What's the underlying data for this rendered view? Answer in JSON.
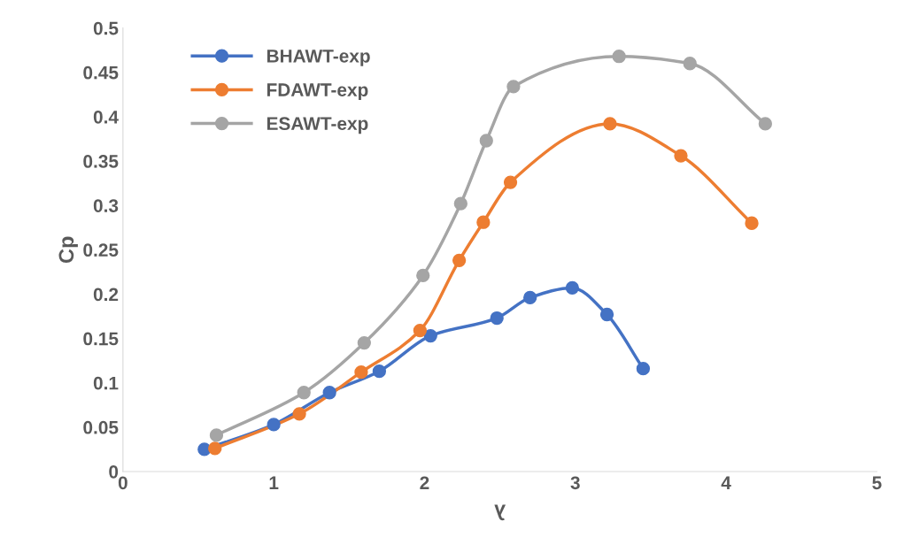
{
  "chart_data": {
    "type": "line",
    "xlabel": "λ",
    "ylabel": "Cp",
    "xlim": [
      0,
      5
    ],
    "xticks": [
      0,
      1,
      2,
      3,
      4,
      5
    ],
    "ylim": [
      0,
      0.5
    ],
    "yticks": [
      0,
      0.05,
      0.1,
      0.15,
      0.2,
      0.25,
      0.3,
      0.35,
      0.4,
      0.45,
      0.5
    ],
    "grid": false,
    "legend": "top left",
    "marker": "circle",
    "line_style": "solid",
    "series": [
      {
        "name": "BHAWT-exp",
        "color": "#4472c4",
        "x": [
          0.54,
          1.0,
          1.37,
          1.7,
          2.04,
          2.48,
          2.7,
          2.98,
          3.21,
          3.45
        ],
        "values": [
          0.025,
          0.053,
          0.089,
          0.113,
          0.153,
          0.173,
          0.196,
          0.207,
          0.177,
          0.116
        ]
      },
      {
        "name": "FDAWT-exp",
        "color": "#ed7d31",
        "x": [
          0.61,
          1.17,
          1.58,
          1.97,
          2.23,
          2.39,
          2.57,
          3.23,
          3.7,
          4.17
        ],
        "values": [
          0.026,
          0.065,
          0.112,
          0.159,
          0.238,
          0.281,
          0.326,
          0.392,
          0.356,
          0.28
        ]
      },
      {
        "name": "ESAWT-exp",
        "color": "#a5a5a5",
        "x": [
          0.62,
          1.2,
          1.6,
          1.99,
          2.24,
          2.41,
          2.59,
          3.29,
          3.76,
          4.26
        ],
        "values": [
          0.041,
          0.089,
          0.145,
          0.221,
          0.302,
          0.373,
          0.434,
          0.468,
          0.46,
          0.392
        ]
      }
    ]
  }
}
